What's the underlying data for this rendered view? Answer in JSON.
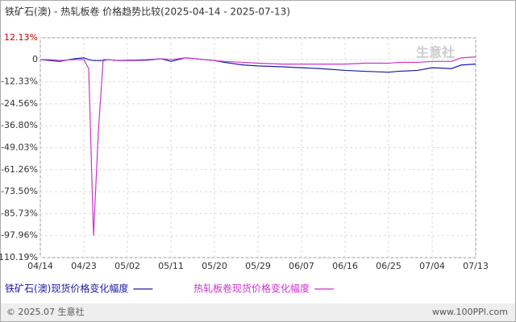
{
  "chart_data": {
    "type": "line",
    "title": "铁矿石(澳) - 热轧板卷 价格趋势比较(2025-04-14 - 2025-07-13)",
    "x": [
      "04/14",
      "04/16",
      "04/18",
      "04/21",
      "04/23",
      "04/24",
      "04/25",
      "04/26",
      "04/27",
      "04/28",
      "04/30",
      "05/02",
      "05/06",
      "05/09",
      "05/11",
      "05/14",
      "05/16",
      "05/20",
      "05/22",
      "05/26",
      "05/29",
      "06/03",
      "06/07",
      "06/11",
      "06/16",
      "06/20",
      "06/25",
      "06/27",
      "07/01",
      "07/04",
      "07/08",
      "07/10",
      "07/13"
    ],
    "series": [
      {
        "name": "铁矿石(澳)现货价格变化幅度",
        "color": "#1a1aa6",
        "values": [
          0,
          -0.5,
          -1,
          0.5,
          1,
          0,
          -0.5,
          -0.5,
          -0.5,
          0,
          -0.5,
          -0.5,
          -0.3,
          0.5,
          -1,
          1,
          0.5,
          -0.5,
          -1.5,
          -3,
          -3.5,
          -4,
          -4.5,
          -5,
          -6,
          -6.5,
          -7,
          -6.5,
          -6,
          -4.5,
          -5,
          -3,
          -2.5
        ]
      },
      {
        "name": "热轧板卷现货价格变化幅度",
        "color": "#cc33cc",
        "values": [
          0,
          0,
          -0.5,
          0,
          0,
          -5,
          -98,
          -40,
          0,
          0,
          -0.5,
          -0.3,
          0,
          0.5,
          0,
          1,
          0.5,
          -0.5,
          -1,
          -1.5,
          -2,
          -2.5,
          -2.5,
          -2.5,
          -2.5,
          -2,
          -2,
          -1.5,
          -1.5,
          -1,
          -1,
          1,
          1.5
        ]
      }
    ],
    "xlim": [
      "04/14",
      "07/13"
    ],
    "xticks": [
      "04/14",
      "04/23",
      "05/02",
      "05/11",
      "05/20",
      "05/29",
      "06/07",
      "06/16",
      "06/25",
      "07/04",
      "07/13"
    ],
    "ylim": [
      -110.19,
      12.13
    ],
    "yticks": [
      {
        "value": 12.13,
        "label": "12.13%"
      },
      0,
      {
        "value": -12.33,
        "label": "-12.33%"
      },
      {
        "value": -24.56,
        "label": "-24.56%"
      },
      {
        "value": -36.8,
        "label": "-36.80%"
      },
      {
        "value": -49.03,
        "label": "-49.03%"
      },
      {
        "value": -61.26,
        "label": "-61.26%"
      },
      {
        "value": -73.5,
        "label": "-73.50%"
      },
      {
        "value": -85.73,
        "label": "-85.73%"
      },
      {
        "value": -97.96,
        "label": "-97.96%"
      },
      {
        "value": -110.19,
        "label": "-110.19%"
      }
    ],
    "grid": true,
    "watermark": "生意社",
    "footer_left": "© 2025.07 生意社",
    "footer_right": "www.100PPI.com"
  }
}
